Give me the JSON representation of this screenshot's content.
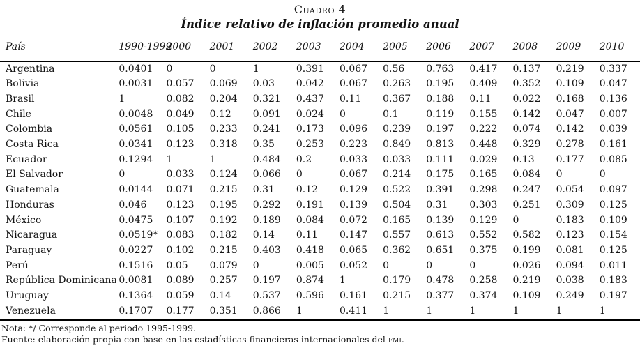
{
  "table": {
    "label": "Cuadro 4",
    "title": "Índice relativo de inflación promedio anual",
    "columns": [
      "País",
      "1990-1999",
      "2000",
      "2001",
      "2002",
      "2003",
      "2004",
      "2005",
      "2006",
      "2007",
      "2008",
      "2009",
      "2010"
    ],
    "rows": [
      {
        "country": "Argentina",
        "values": [
          "0.0401",
          "0",
          "0",
          "1",
          "0.391",
          "0.067",
          "0.56",
          "0.763",
          "0.417",
          "0.137",
          "0.219",
          "0.337"
        ]
      },
      {
        "country": "Bolivia",
        "values": [
          "0.0031",
          "0.057",
          "0.069",
          "0.03",
          "0.042",
          "0.067",
          "0.263",
          "0.195",
          "0.409",
          "0.352",
          "0.109",
          "0.047"
        ]
      },
      {
        "country": "Brasil",
        "values": [
          "1",
          "0.082",
          "0.204",
          "0.321",
          "0.437",
          "0.11",
          "0.367",
          "0.188",
          "0.11",
          "0.022",
          "0.168",
          "0.136"
        ]
      },
      {
        "country": "Chile",
        "values": [
          "0.0048",
          "0.049",
          "0.12",
          "0.091",
          "0.024",
          "0",
          "0.1",
          "0.119",
          "0.155",
          "0.142",
          "0.047",
          "0.007"
        ]
      },
      {
        "country": "Colombia",
        "values": [
          "0.0561",
          "0.105",
          "0.233",
          "0.241",
          "0.173",
          "0.096",
          "0.239",
          "0.197",
          "0.222",
          "0.074",
          "0.142",
          "0.039"
        ]
      },
      {
        "country": "Costa Rica",
        "values": [
          "0.0341",
          "0.123",
          "0.318",
          "0.35",
          "0.253",
          "0.223",
          "0.849",
          "0.813",
          "0.448",
          "0.329",
          "0.278",
          "0.161"
        ]
      },
      {
        "country": "Ecuador",
        "values": [
          "0.1294",
          "1",
          "1",
          "0.484",
          "0.2",
          "0.033",
          "0.033",
          "0.111",
          "0.029",
          "0.13",
          "0.177",
          "0.085"
        ]
      },
      {
        "country": "El Salvador",
        "values": [
          "0",
          "0.033",
          "0.124",
          "0.066",
          "0",
          "0.067",
          "0.214",
          "0.175",
          "0.165",
          "0.084",
          "0",
          "0"
        ]
      },
      {
        "country": "Guatemala",
        "values": [
          "0.0144",
          "0.071",
          "0.215",
          "0.31",
          "0.12",
          "0.129",
          "0.522",
          "0.391",
          "0.298",
          "0.247",
          "0.054",
          "0.097"
        ]
      },
      {
        "country": "Honduras",
        "values": [
          "0.046",
          "0.123",
          "0.195",
          "0.292",
          "0.191",
          "0.139",
          "0.504",
          "0.31",
          "0.303",
          "0.251",
          "0.309",
          "0.125"
        ]
      },
      {
        "country": "México",
        "values": [
          "0.0475",
          "0.107",
          "0.192",
          "0.189",
          "0.084",
          "0.072",
          "0.165",
          "0.139",
          "0.129",
          "0",
          "0.183",
          "0.109"
        ]
      },
      {
        "country": "Nicaragua",
        "values": [
          "0.0519*",
          "0.083",
          "0.182",
          "0.14",
          "0.11",
          "0.147",
          "0.557",
          "0.613",
          "0.552",
          "0.582",
          "0.123",
          "0.154"
        ]
      },
      {
        "country": "Paraguay",
        "values": [
          "0.0227",
          "0.102",
          "0.215",
          "0.403",
          "0.418",
          "0.065",
          "0.362",
          "0.651",
          "0.375",
          "0.199",
          "0.081",
          "0.125"
        ]
      },
      {
        "country": "Perú",
        "values": [
          "0.1516",
          "0.05",
          "0.079",
          "0",
          "0.005",
          "0.052",
          "0",
          "0",
          "0",
          "0.026",
          "0.094",
          "0.011"
        ]
      },
      {
        "country": "República Dominicana",
        "values": [
          "0.0081",
          "0.089",
          "0.257",
          "0.197",
          "0.874",
          "1",
          "0.179",
          "0.478",
          "0.258",
          "0.219",
          "0.038",
          "0.183"
        ]
      },
      {
        "country": "Uruguay",
        "values": [
          "0.1364",
          "0.059",
          "0.14",
          "0.537",
          "0.596",
          "0.161",
          "0.215",
          "0.377",
          "0.374",
          "0.109",
          "0.249",
          "0.197"
        ]
      },
      {
        "country": "Venezuela",
        "values": [
          "0.1707",
          "0.177",
          "0.351",
          "0.866",
          "1",
          "0.411",
          "1",
          "1",
          "1",
          "1",
          "1",
          "1"
        ]
      }
    ]
  },
  "notes": {
    "note": "Nota: */ Corresponde al periodo 1995-1999.",
    "source_prefix": "Fuente: elaboración propia con base en las estadísticas financieras internacionales del ",
    "source_abbrev": "fmi",
    "source_suffix": "."
  }
}
